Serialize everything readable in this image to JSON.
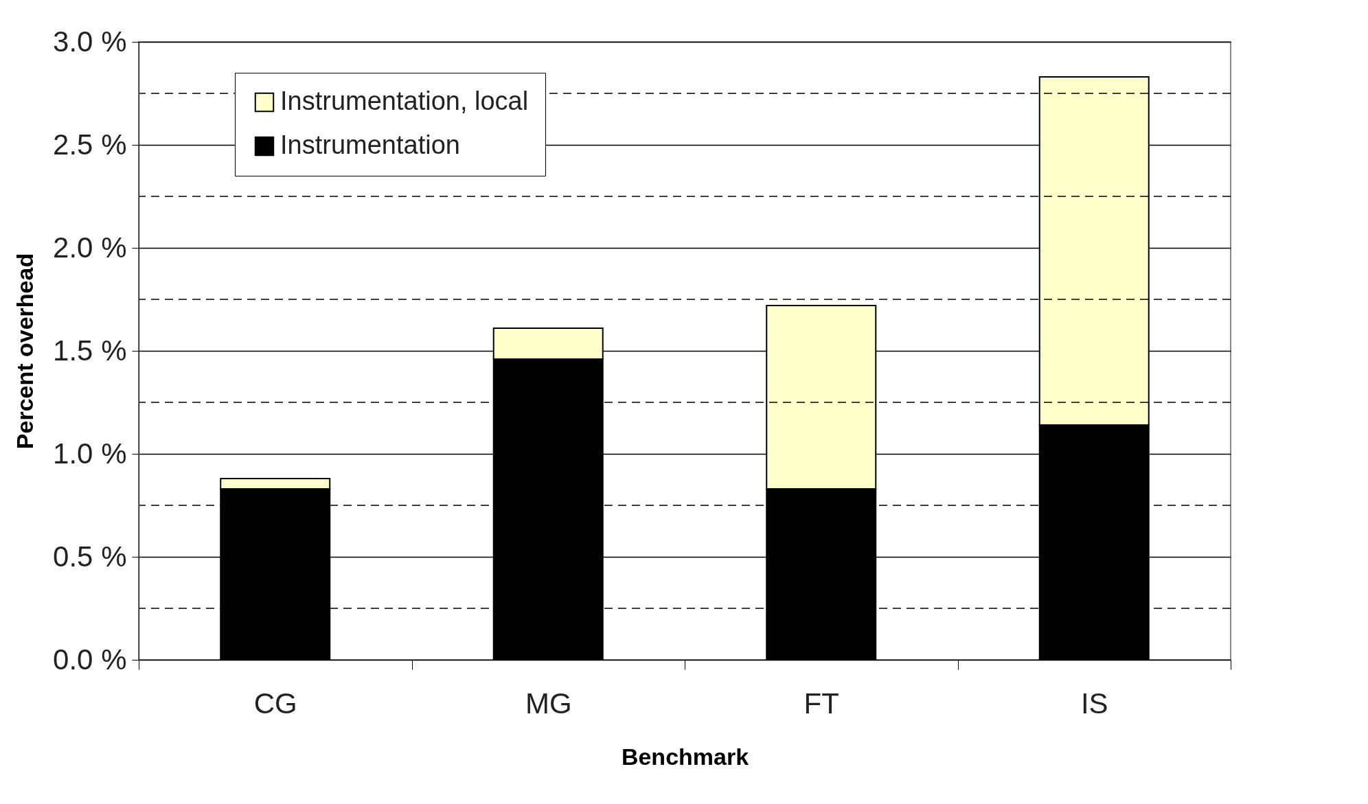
{
  "chart_data": {
    "type": "bar",
    "stacked": true,
    "xlabel": "Benchmark",
    "ylabel": "Percent overhead",
    "categories": [
      "CG",
      "MG",
      "FT",
      "IS"
    ],
    "series": [
      {
        "name": "Instrumentation",
        "color": "#000000",
        "values": [
          0.83,
          1.46,
          0.83,
          1.14
        ]
      },
      {
        "name": "Instrumentation, local",
        "color": "#ffffcc",
        "values": [
          0.05,
          0.15,
          0.89,
          1.69
        ]
      }
    ],
    "ylim": [
      0,
      3
    ],
    "yticks": [
      {
        "value": 0,
        "label": "0.0 %"
      },
      {
        "value": 0.25,
        "label": null
      },
      {
        "value": 0.5,
        "label": "0.5 %"
      },
      {
        "value": 0.75,
        "label": null
      },
      {
        "value": 1,
        "label": "1.0 %"
      },
      {
        "value": 1.25,
        "label": null
      },
      {
        "value": 1.5,
        "label": "1.5 %"
      },
      {
        "value": 1.75,
        "label": null
      },
      {
        "value": 2,
        "label": "2.0 %"
      },
      {
        "value": 2.25,
        "label": null
      },
      {
        "value": 2.5,
        "label": "2.5 %"
      },
      {
        "value": 2.75,
        "label": null
      },
      {
        "value": 3,
        "label": "3.0 %"
      }
    ],
    "grid": "y",
    "legend": "top left"
  }
}
